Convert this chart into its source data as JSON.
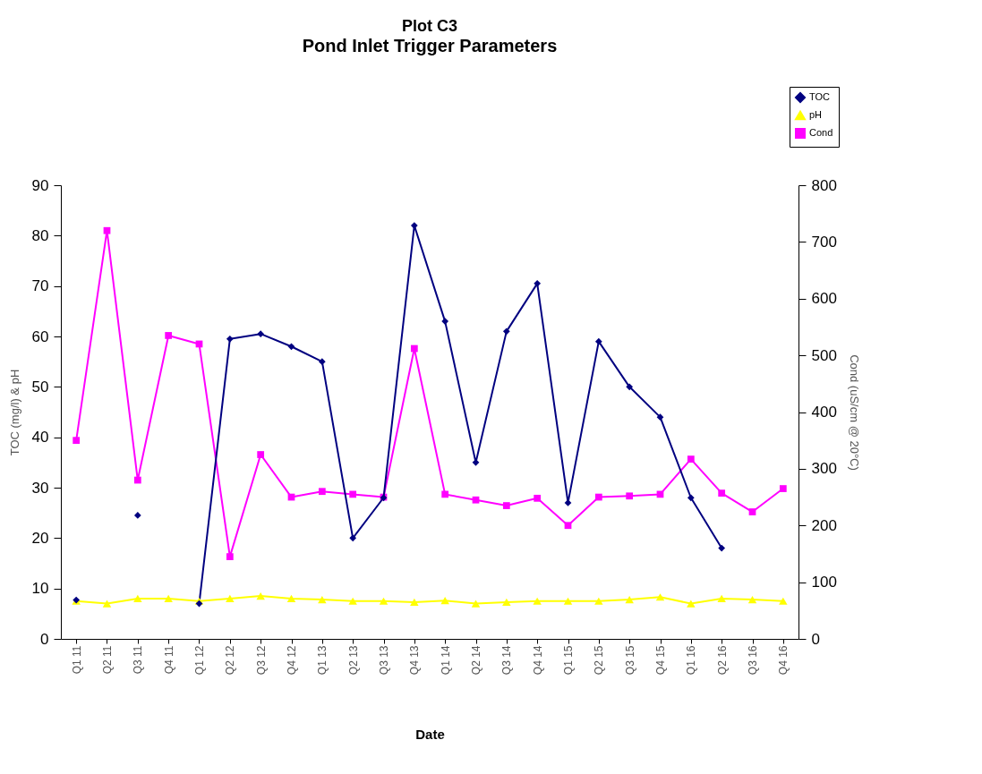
{
  "chart_data": {
    "type": "line",
    "title": "Plot C3",
    "subtitle": "Pond Inlet Trigger Parameters",
    "xlabel": "Date",
    "ylabel": "TOC (mg/l) & pH",
    "y2label": "Cond (uS/cm @ 20°C)",
    "categories": [
      "Q1 11",
      "Q2 11",
      "Q3 11",
      "Q4 11",
      "Q1 12",
      "Q2 12",
      "Q3 12",
      "Q4 12",
      "Q1 13",
      "Q2 13",
      "Q3 13",
      "Q4 13",
      "Q1 14",
      "Q2 14",
      "Q3 14",
      "Q4 14",
      "Q1 15",
      "Q2 15",
      "Q3 15",
      "Q4 15",
      "Q1 16",
      "Q2 16",
      "Q3 16",
      "Q4 16"
    ],
    "series": [
      {
        "name": "TOC",
        "color": "#000080",
        "marker": "diamond",
        "values": [
          7.7,
          null,
          24.5,
          null,
          7,
          59.5,
          60.5,
          58,
          55,
          20,
          28,
          82,
          63,
          35,
          61,
          70.5,
          27,
          59,
          50,
          44,
          28,
          18,
          null,
          null
        ]
      },
      {
        "name": "pH",
        "color": "#ffff00",
        "marker": "triangle",
        "values": [
          7.5,
          7,
          8,
          8,
          7.5,
          8,
          8.5,
          8,
          7.8,
          7.5,
          7.5,
          7.3,
          7.6,
          7,
          7.3,
          7.5,
          7.5,
          7.5,
          7.8,
          8.3,
          7,
          8,
          7.8,
          7.5
        ]
      },
      {
        "name": "Cond",
        "color": "#ff00ff",
        "marker": "square",
        "axis": "y2",
        "values": [
          350,
          720,
          280,
          535,
          520,
          145,
          325,
          250,
          260,
          255,
          250,
          512,
          255,
          245,
          235,
          248,
          200,
          250,
          252,
          255,
          317,
          257,
          224,
          265
        ]
      }
    ],
    "ylim": [
      0,
      90
    ],
    "yticks": [
      0,
      10,
      20,
      30,
      40,
      50,
      60,
      70,
      80,
      90
    ],
    "y2lim": [
      0,
      800
    ],
    "y2ticks": [
      0,
      100,
      200,
      300,
      400,
      500,
      600,
      700,
      800
    ],
    "grid": false,
    "legend": "top right",
    "line_style": "solid"
  }
}
